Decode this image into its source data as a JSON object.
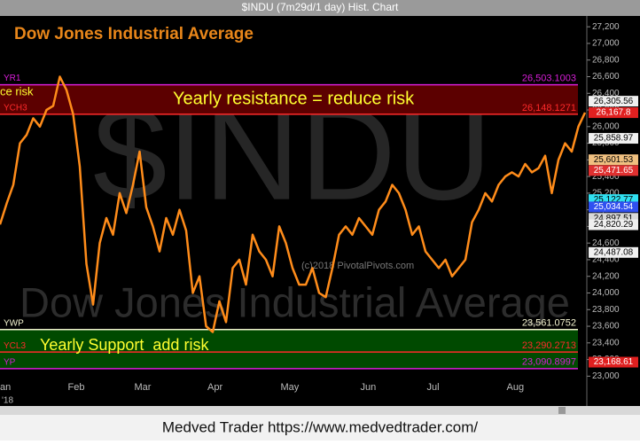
{
  "window_title": "$INDU (7m29d/1 day) Hist. Chart",
  "footer": "Medved Trader https://www.medvedtrader.com/",
  "chart_data": {
    "type": "line",
    "title": "Dow Jones Industrial Average",
    "watermark": "$INDU",
    "watermark_subtitle": "Dow Jones Industrial Average",
    "copyright": "(c)2018 PivotalPivots.com",
    "year_label": "'18",
    "categories": [
      "an",
      null,
      null,
      null,
      null,
      null,
      null,
      null,
      null,
      null,
      null,
      "Feb",
      null,
      null,
      null,
      null,
      null,
      null,
      null,
      null,
      null,
      "Mar",
      null,
      null,
      null,
      null,
      null,
      null,
      null,
      null,
      null,
      null,
      "Apr",
      null,
      null,
      null,
      null,
      null,
      null,
      null,
      null,
      null,
      null,
      "May",
      null,
      null,
      null,
      null,
      null,
      null,
      null,
      null,
      null,
      null,
      null,
      "Jun",
      null,
      null,
      null,
      null,
      null,
      null,
      null,
      null,
      null,
      "Jul",
      null,
      null,
      null,
      null,
      null,
      null,
      null,
      null,
      null,
      null,
      null,
      "Aug",
      null,
      null,
      null,
      null,
      null,
      null,
      null,
      null,
      null,
      null,
      null
    ],
    "series": [
      {
        "color": "#ff8c1a",
        "values": [
          24824,
          25075,
          25300,
          25800,
          25900,
          26100,
          26000,
          26200,
          26250,
          26600,
          26440,
          26150,
          25520,
          24350,
          23860,
          24600,
          24900,
          24700,
          25200,
          24960,
          25300,
          25700,
          25030,
          24800,
          24500,
          24900,
          24700,
          25000,
          24750,
          24000,
          24200,
          23600,
          23530,
          23900,
          23650,
          24300,
          24400,
          24100,
          24700,
          24500,
          24400,
          24200,
          24800,
          24600,
          24300,
          24100,
          24100,
          24300,
          24000,
          23950,
          24300,
          24700,
          24800,
          24700,
          24900,
          24800,
          24700,
          25000,
          25100,
          25300,
          25200,
          25000,
          24700,
          24800,
          24500,
          24400,
          24300,
          24400,
          24200,
          24300,
          24400,
          24850,
          25000,
          25200,
          25100,
          25300,
          25400,
          25450,
          25400,
          25550,
          25450,
          25500,
          25650,
          25200,
          25600,
          25800,
          25700,
          26000,
          26168
        ]
      }
    ],
    "ylim": [
      22780,
      27330
    ],
    "yticks": [
      {
        "value": 23000,
        "label": "23,000"
      },
      {
        "value": 23200,
        "label": "23,200"
      },
      {
        "value": 23400,
        "label": "23,400"
      },
      {
        "value": 23600,
        "label": "23,600"
      },
      {
        "value": 23800,
        "label": "23,800"
      },
      {
        "value": 24000,
        "label": "24,000"
      },
      {
        "value": 24200,
        "label": "24,200"
      },
      {
        "value": 24400,
        "label": "24,400"
      },
      {
        "value": 24600,
        "label": "24,600"
      },
      {
        "value": 24800,
        "label": "24,800"
      },
      {
        "value": 25000,
        "label": "25,000"
      },
      {
        "value": 25200,
        "label": "25,200"
      },
      {
        "value": 25400,
        "label": "25,400"
      },
      {
        "value": 25600,
        "label": "25,600"
      },
      {
        "value": 25800,
        "label": "25,800"
      },
      {
        "value": 26000,
        "label": "26,000"
      },
      {
        "value": 26200,
        "label": "26,200"
      },
      {
        "value": 26400,
        "label": "26,400"
      },
      {
        "value": 26600,
        "label": "26,600"
      },
      {
        "value": 26800,
        "label": "26,800"
      },
      {
        "value": 27000,
        "label": "27,000"
      },
      {
        "value": 27200,
        "label": "27,200"
      }
    ],
    "levels": [
      {
        "name": "YR1",
        "value": 26503.1003,
        "label": "26,503.1003",
        "color": "#d81ed8"
      },
      {
        "name": "YCH3",
        "value": 26148.1271,
        "label": "26,148.1271",
        "color": "#ff2a2a"
      },
      {
        "name": "YWP",
        "value": 23561.0752,
        "label": "23,561.0752",
        "color": "#f4f4d0"
      },
      {
        "name": "YCL3",
        "value": 23290.2713,
        "label": "23,290.2713",
        "color": "#ff2a2a"
      },
      {
        "name": "YP",
        "value": 23090.8997,
        "label": "23,090.8997",
        "color": "#d81ed8"
      }
    ],
    "price_tags": [
      {
        "value": 26305.56,
        "label": "26,305.56",
        "color": "#f0f0f0"
      },
      {
        "value": 26167.8,
        "label": "26,167.8",
        "color": "#e02020"
      },
      {
        "value": 25858.97,
        "label": "25,858.97",
        "color": "#f0f0f0"
      },
      {
        "value": 25601.53,
        "label": "25,601.53",
        "color": "#f0c080"
      },
      {
        "value": 25471.65,
        "label": "25,471.65",
        "color": "#e03030"
      },
      {
        "value": 25122.77,
        "label": "25,122.77",
        "color": "#30e0f0"
      },
      {
        "value": 25034.54,
        "label": "25,034.54",
        "color": "#3050f0"
      },
      {
        "value": 24897.51,
        "label": "24,897.51",
        "color": "#d8d8d8"
      },
      {
        "value": 24820.29,
        "label": "24,820.29",
        "color": "#f0f0f0"
      },
      {
        "value": 24487.08,
        "label": "24,487.08",
        "color": "#f0f0f0"
      },
      {
        "value": 23168.61,
        "label": "23,168.61",
        "color": "#e02020"
      }
    ],
    "annotations": [
      "Yearly resistance = reduce risk",
      "ce risk",
      "Yearly Support  add risk"
    ]
  }
}
